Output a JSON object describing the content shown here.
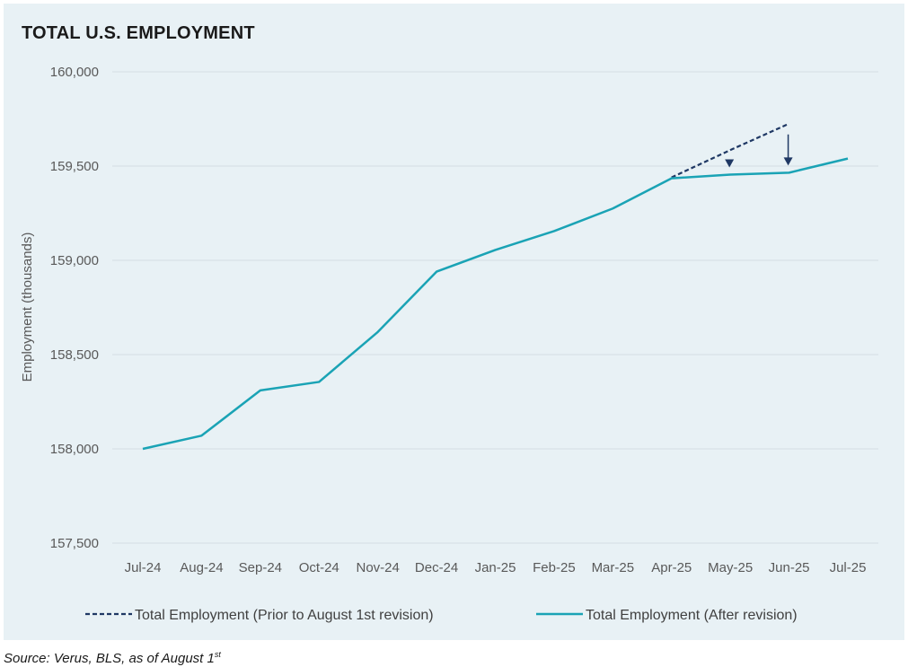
{
  "title": "TOTAL U.S. EMPLOYMENT",
  "source_prefix": "Source: Verus, BLS, as of August 1",
  "source_sup": "st",
  "chart_data": {
    "type": "line",
    "title": "TOTAL U.S. EMPLOYMENT",
    "xlabel": "",
    "ylabel": "Employment (thousands)",
    "ylim": [
      157500,
      160000
    ],
    "yticks": [
      160000,
      159500,
      159000,
      158500,
      158000,
      157500
    ],
    "ytick_labels": [
      "160,000",
      "159,500",
      "159,000",
      "158,500",
      "158,000",
      "157,500"
    ],
    "categories": [
      "Jul-24",
      "Aug-24",
      "Sep-24",
      "Oct-24",
      "Nov-24",
      "Dec-24",
      "Jan-25",
      "Feb-25",
      "Mar-25",
      "Apr-25",
      "May-25",
      "Jun-25",
      "Jul-25"
    ],
    "grid": "horizontal",
    "legend_position": "bottom",
    "series": [
      {
        "name": "Total Employment (Prior to August 1st revision)",
        "style": "dashed",
        "color": "#1f3864",
        "values": [
          null,
          null,
          null,
          null,
          null,
          null,
          null,
          null,
          null,
          159440,
          159585,
          159725,
          null
        ]
      },
      {
        "name": "Total Employment (After revision)",
        "style": "solid",
        "color": "#1aa3b5",
        "values": [
          158000,
          158070,
          158310,
          158355,
          158620,
          158940,
          159055,
          159155,
          159275,
          159435,
          159455,
          159465,
          159540
        ]
      }
    ],
    "annotations": [
      {
        "type": "down-arrow",
        "category": "May-25",
        "from": 159585,
        "to": 159455
      },
      {
        "type": "down-arrow",
        "category": "Jun-25",
        "from": 159725,
        "to": 159465
      }
    ]
  }
}
